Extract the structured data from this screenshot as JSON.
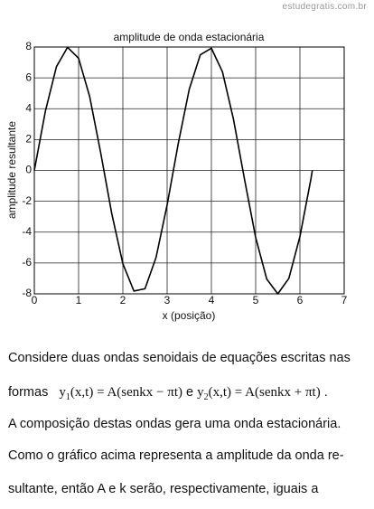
{
  "watermark": "estudegratis.com.br",
  "chart_data": {
    "type": "line",
    "title": "amplitude de onda estacionária",
    "x_label": "x (posição)",
    "y_label": "amplitude resultante",
    "x": [
      0,
      0.25,
      0.5,
      0.75,
      1.0,
      1.25,
      1.5,
      1.75,
      2.0,
      2.25,
      2.5,
      2.75,
      3.0,
      3.25,
      3.5,
      3.75,
      4.0,
      4.25,
      4.5,
      4.75,
      5.0,
      5.25,
      5.5,
      5.75,
      6.0,
      6.25,
      6.28
    ],
    "values": [
      0,
      3.84,
      6.73,
      7.98,
      7.27,
      4.79,
      1.13,
      -2.81,
      -6.05,
      -7.82,
      -7.67,
      -5.64,
      -2.24,
      1.72,
      5.26,
      7.5,
      7.92,
      6.39,
      3.3,
      -0.6,
      -4.35,
      -7.04,
      -8.0,
      -7.0,
      -4.29,
      -0.53,
      0
    ],
    "color": "#000000",
    "xlim": [
      0,
      7
    ],
    "ylim": [
      -8,
      8
    ],
    "xticks": [
      0,
      1,
      2,
      3,
      4,
      5,
      6,
      7
    ],
    "yticks": [
      -8,
      -6,
      -4,
      -2,
      0,
      2,
      4,
      6,
      8
    ],
    "grid": true
  },
  "text": {
    "lines": [
      "Considere duas ondas senoidais de equações escritas nas",
      "A composição destas ondas gera uma onda estacionária.",
      "Como o gráfico acima representa a amplitude da onda re-",
      "sultante, então A e k serão, respectivamente, iguais a"
    ],
    "formula": [
      "formas",
      "y",
      "1",
      "(x,t) = A(senkx − πt)",
      "e",
      "y",
      "2",
      "(x,t) = A(senkx + πt)",
      "."
    ]
  }
}
